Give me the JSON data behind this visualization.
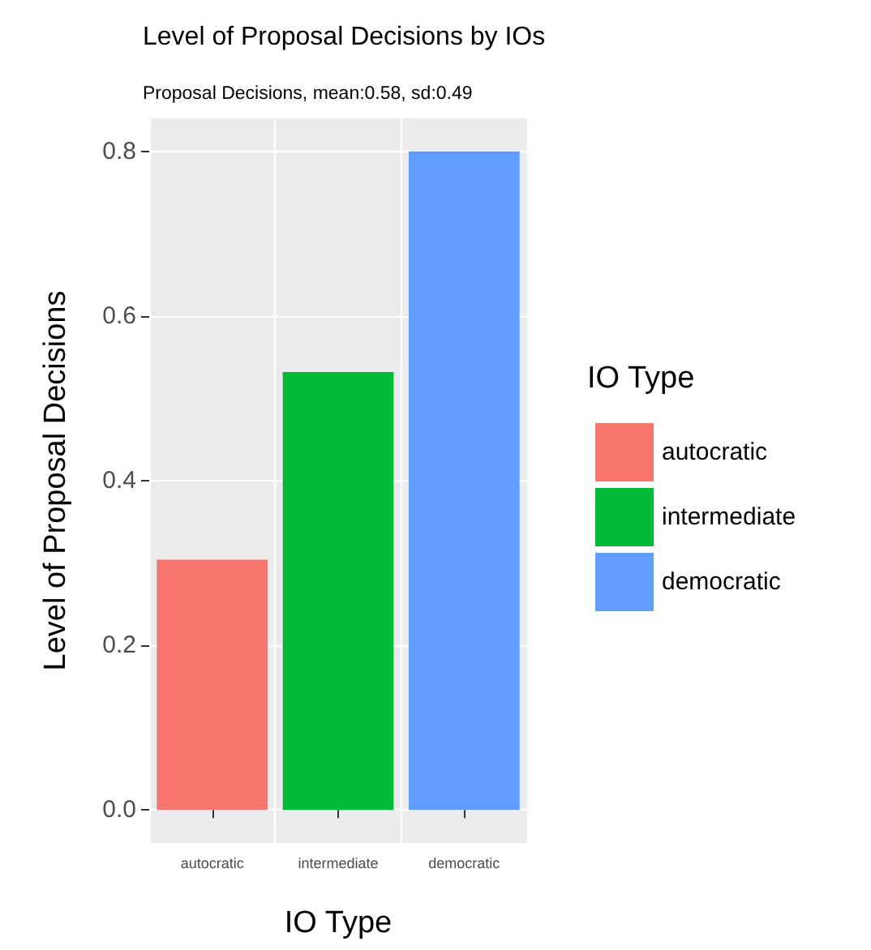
{
  "chart_data": {
    "type": "bar",
    "title": "Level of Proposal Decisions by IOs",
    "subtitle": "Proposal Decisions, mean:0.58, sd:0.49",
    "xlabel": "IO Type",
    "ylabel": "Level of Proposal Decisions",
    "legend_title": "IO Type",
    "categories": [
      "autocratic",
      "intermediate",
      "democratic"
    ],
    "series": [
      {
        "name": "autocratic",
        "color": "#f8766d",
        "values": [
          0.304,
          null,
          null
        ]
      },
      {
        "name": "intermediate",
        "color": "#00ba38",
        "values": [
          null,
          0.532,
          null
        ]
      },
      {
        "name": "democratic",
        "color": "#619cff",
        "values": [
          null,
          null,
          0.8
        ]
      }
    ],
    "ylim": [
      -0.04,
      0.84
    ],
    "yticks": [
      {
        "value": 0,
        "label": "0.0"
      },
      {
        "value": 0.2,
        "label": "0.2"
      },
      {
        "value": 0.4,
        "label": "0.4"
      },
      {
        "value": 0.6,
        "label": "0.6"
      },
      {
        "value": 0.8,
        "label": "0.8"
      }
    ],
    "grid": true,
    "legend": "right"
  }
}
